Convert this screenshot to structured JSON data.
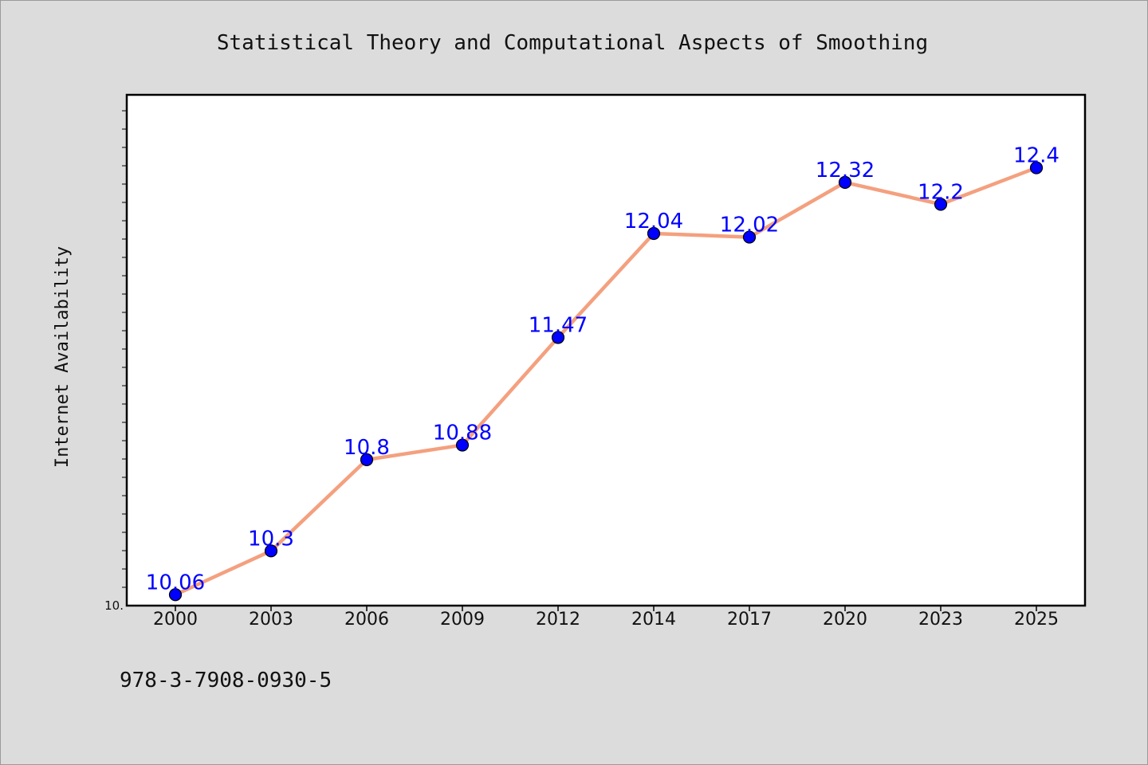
{
  "chart_data": {
    "type": "line",
    "title": "Statistical Theory and Computational Aspects of Smoothing",
    "xlabel": "",
    "ylabel": "Internet Availability",
    "categories": [
      "2000",
      "2003",
      "2006",
      "2009",
      "2012",
      "2014",
      "2017",
      "2020",
      "2023",
      "2025"
    ],
    "series": [
      {
        "values": [
          10.06,
          10.3,
          10.8,
          10.88,
          11.47,
          12.04,
          12.02,
          12.32,
          12.2,
          12.4
        ],
        "labels": [
          "10.06",
          "10.3",
          "10.8",
          "10.88",
          "11.47",
          "12.04",
          "12.02",
          "12.32",
          "12.2",
          "12.4"
        ],
        "line_color": "#f4a07f",
        "marker_color": "#0000ff"
      }
    ],
    "yticks": [
      {
        "value": 10,
        "label": "10."
      }
    ],
    "ylim": [
      10,
      12.8
    ],
    "grid": false,
    "legend": "none"
  },
  "footer": {
    "isbn": "978-3-7908-0930-5"
  },
  "colors": {
    "background": "#dcdcdc",
    "plot_background": "#ffffff",
    "axis": "#000000"
  }
}
